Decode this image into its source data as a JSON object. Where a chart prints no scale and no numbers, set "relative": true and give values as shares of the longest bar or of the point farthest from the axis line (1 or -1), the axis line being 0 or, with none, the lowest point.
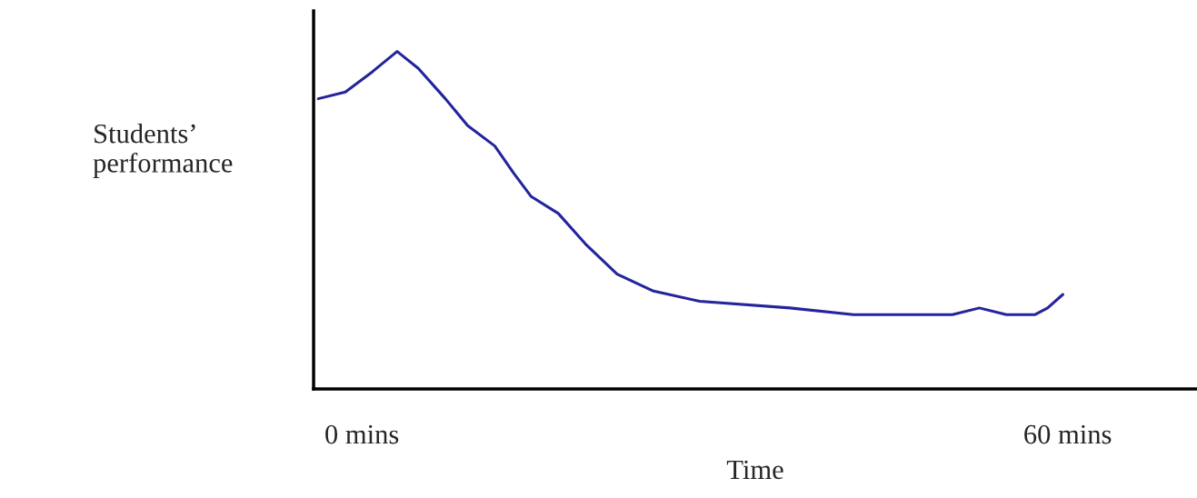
{
  "chart_data": {
    "type": "line",
    "relative": true,
    "xlabel": "Time",
    "ylabel": "Students’\nperformance",
    "xlim": [
      -4.1,
      71
    ],
    "xticks": [
      {
        "value": 0,
        "label": "0 mins"
      },
      {
        "value": 60,
        "label": "60 mins"
      }
    ],
    "tick_labels": "x",
    "grid": false,
    "marker": "none",
    "line_style": "solid",
    "series": [
      {
        "color": "#24249c",
        "x": [
          -3.7,
          -1.4,
          0.9,
          3.0,
          4.8,
          7.1,
          9.0,
          11.3,
          12.9,
          14.4,
          16.7,
          19.0,
          21.7,
          24.8,
          28.7,
          36.4,
          41.8,
          47.1,
          50.2,
          52.5,
          54.8,
          57.2,
          58.3,
          59.6
        ],
        "values": [
          0.86,
          0.88,
          0.94,
          1.0,
          0.95,
          0.86,
          0.78,
          0.72,
          0.64,
          0.57,
          0.52,
          0.43,
          0.34,
          0.29,
          0.26,
          0.24,
          0.22,
          0.22,
          0.22,
          0.24,
          0.22,
          0.22,
          0.24,
          0.28
        ]
      }
    ]
  }
}
